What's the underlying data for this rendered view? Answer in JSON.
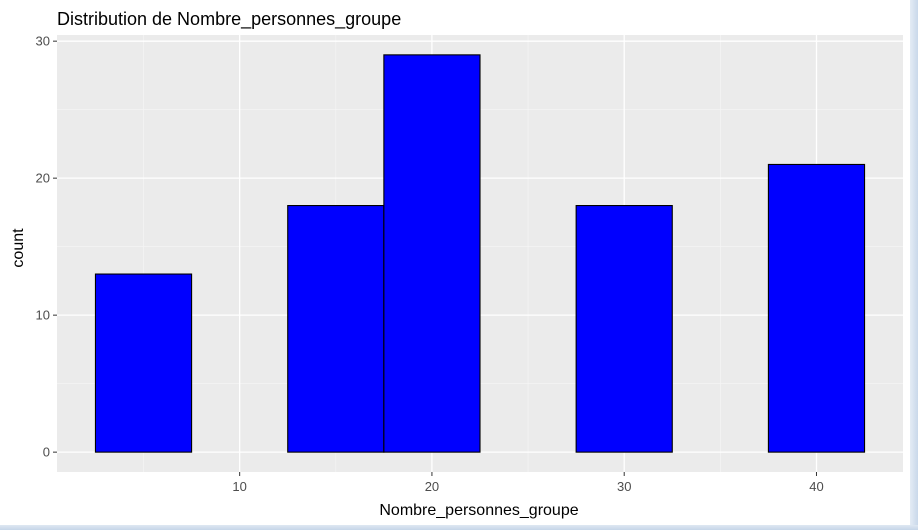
{
  "chart_data": {
    "type": "bar",
    "title": "Distribution de Nombre_personnes_groupe",
    "xlabel": "Nombre_personnes_groupe",
    "ylabel": "count",
    "bins": [
      {
        "x0": 2.5,
        "x1": 7.5,
        "count": 13
      },
      {
        "x0": 7.5,
        "x1": 12.5,
        "count": 0
      },
      {
        "x0": 12.5,
        "x1": 17.5,
        "count": 18
      },
      {
        "x0": 17.5,
        "x1": 22.5,
        "count": 29
      },
      {
        "x0": 22.5,
        "x1": 27.5,
        "count": 0
      },
      {
        "x0": 27.5,
        "x1": 32.5,
        "count": 18
      },
      {
        "x0": 32.5,
        "x1": 37.5,
        "count": 0
      },
      {
        "x0": 37.5,
        "x1": 42.5,
        "count": 21
      }
    ],
    "xlim": [
      0.5,
      44.5
    ],
    "ylim": [
      -1.45,
      30.45
    ],
    "x_ticks": [
      10,
      20,
      30,
      40
    ],
    "x_minor_ticks": [
      5,
      15,
      25,
      35
    ],
    "y_ticks": [
      0,
      10,
      20,
      30
    ],
    "y_minor_ticks": [
      5,
      15,
      25
    ],
    "grid": true,
    "colors": {
      "bar_fill": "#0000ff",
      "bar_stroke": "#000000",
      "panel_background": "#ebebeb",
      "grid_major": "#ffffff",
      "grid_minor": "#f5f5f5",
      "tick_text": "#4d4d4d"
    }
  }
}
